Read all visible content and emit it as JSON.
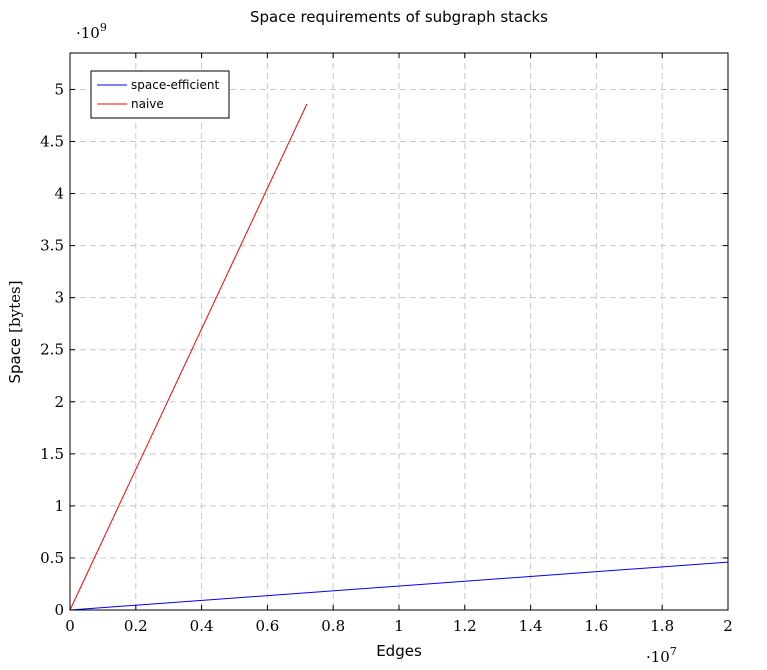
{
  "chart_data": {
    "type": "line",
    "title": "Space requirements of subgraph stacks",
    "xlabel": "Edges",
    "ylabel_text": "Space",
    "ylabel_unit": "[bytes]",
    "x_multiplier_base": "·10",
    "x_multiplier_exp": "7",
    "y_multiplier_base": "·10",
    "y_multiplier_exp": "9",
    "xlim": [
      0,
      2
    ],
    "ylim": [
      0,
      5.35
    ],
    "x_ticks": [
      0,
      0.2,
      0.4,
      0.6,
      0.8,
      1,
      1.2,
      1.4,
      1.6,
      1.8,
      2
    ],
    "x_tick_labels": [
      "0",
      "0.2",
      "0.4",
      "0.6",
      "0.8",
      "1",
      "1.2",
      "1.4",
      "1.6",
      "1.8",
      "2"
    ],
    "y_ticks": [
      0,
      0.5,
      1,
      1.5,
      2,
      2.5,
      3,
      3.5,
      4,
      4.5,
      5
    ],
    "y_tick_labels": [
      "0",
      "0.5",
      "1",
      "1.5",
      "2",
      "2.5",
      "3",
      "3.5",
      "4",
      "4.5",
      "5"
    ],
    "grid": true,
    "legend_position": "top-left",
    "series": [
      {
        "name": "space-efficient",
        "color": "#0000ff",
        "x": [
          0,
          2
        ],
        "y": [
          0,
          0.46
        ]
      },
      {
        "name": "naive",
        "color": "#ff0000",
        "x": [
          0,
          0.72
        ],
        "y": [
          0,
          4.86
        ]
      }
    ]
  }
}
